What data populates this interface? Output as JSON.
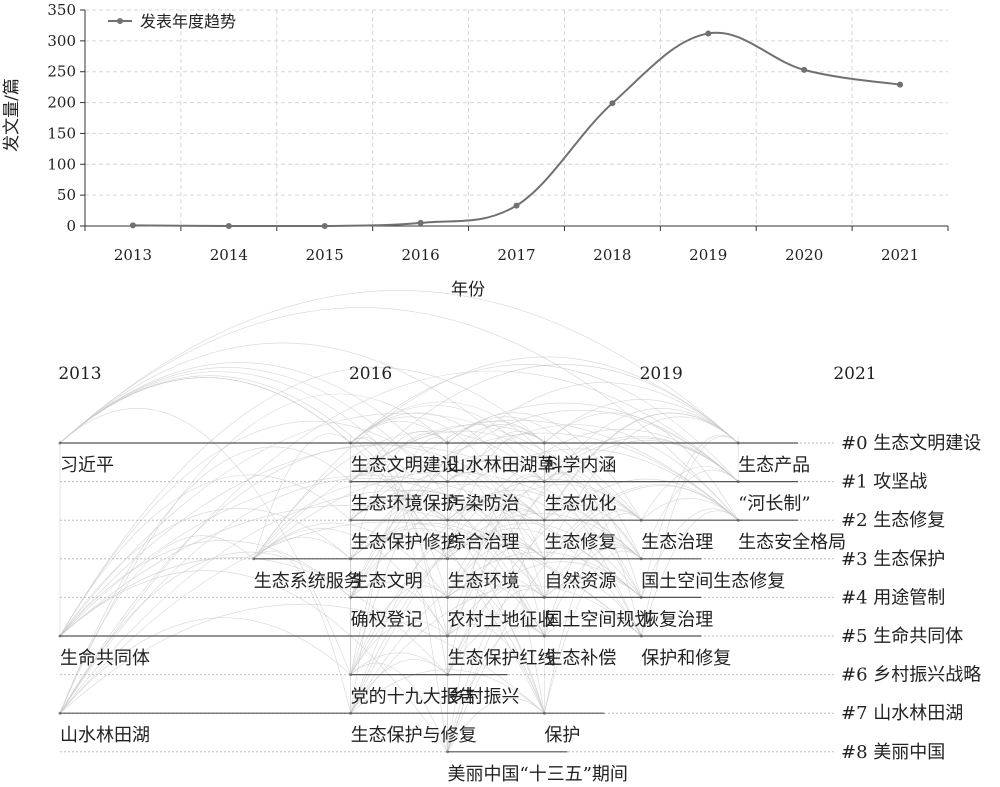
{
  "chart_data": [
    {
      "type": "line",
      "title": "",
      "xlabel": "年份",
      "ylabel": "发文量/篇",
      "categories": [
        "2013",
        "2014",
        "2015",
        "2016",
        "2017",
        "2018",
        "2019",
        "2020",
        "2021"
      ],
      "series": [
        {
          "name": "发表年度趋势",
          "values": [
            1,
            0,
            0,
            5,
            33,
            199,
            312,
            253,
            229
          ]
        }
      ],
      "ylim": [
        0,
        350
      ],
      "yticks": [
        0,
        50,
        100,
        150,
        200,
        250,
        300,
        350
      ],
      "grid": true,
      "legend": "top-left",
      "color": "#707070"
    },
    {
      "type": "timeline",
      "title": "",
      "year_labels": [
        {
          "year": "2013",
          "value": 2013
        },
        {
          "year": "2016",
          "value": 2016
        },
        {
          "year": "2019",
          "value": 2019
        },
        {
          "year": "2021",
          "value": 2021
        }
      ],
      "clusters": [
        {
          "label": "#0 生态文明建设",
          "start": 2013,
          "end": 2021
        },
        {
          "label": "#1 攻坚战",
          "start": 2013,
          "end": 2021
        },
        {
          "label": "#2 生态修复",
          "start": 2013,
          "end": 2021
        },
        {
          "label": "#3 生态保护",
          "start": 2013,
          "end": 2021
        },
        {
          "label": "#4 用途管制",
          "start": 2013,
          "end": 2021
        },
        {
          "label": "#5 生命共同体",
          "start": 2013,
          "end": 2021
        },
        {
          "label": "#6 乡村振兴战略",
          "start": 2013,
          "end": 2021
        },
        {
          "label": "#7 山水林田湖",
          "start": 2013,
          "end": 2021
        },
        {
          "label": "#8 美丽中国",
          "start": 2013,
          "end": 2021
        }
      ],
      "keywords": [
        {
          "text": "习近平",
          "year": 2013,
          "cluster": 0
        },
        {
          "text": "生态文明建设",
          "year": 2016,
          "cluster": 0
        },
        {
          "text": "山水林田湖草",
          "year": 2017,
          "cluster": 0
        },
        {
          "text": "科学内涵",
          "year": 2018,
          "cluster": 0
        },
        {
          "text": "生态产品",
          "year": 2020,
          "cluster": 0
        },
        {
          "text": "生态环境保护",
          "year": 2016,
          "cluster": 1
        },
        {
          "text": "污染防治",
          "year": 2017,
          "cluster": 1
        },
        {
          "text": "生态优化",
          "year": 2018,
          "cluster": 1
        },
        {
          "text": "“河长制”",
          "year": 2020,
          "cluster": 1
        },
        {
          "text": "生态保护修护",
          "year": 2016,
          "cluster": 2
        },
        {
          "text": "综合治理",
          "year": 2017,
          "cluster": 2
        },
        {
          "text": "生态修复",
          "year": 2018,
          "cluster": 2
        },
        {
          "text": "生态治理",
          "year": 2019,
          "cluster": 2
        },
        {
          "text": "生态安全格局",
          "year": 2020,
          "cluster": 2
        },
        {
          "text": "生态系统服务",
          "year": 2015,
          "cluster": 3
        },
        {
          "text": "生态文明",
          "year": 2016,
          "cluster": 3
        },
        {
          "text": "生态环境",
          "year": 2017,
          "cluster": 3
        },
        {
          "text": "自然资源",
          "year": 2018,
          "cluster": 3
        },
        {
          "text": "国土空间生态修复",
          "year": 2019,
          "cluster": 3
        },
        {
          "text": "生命共同体",
          "year": 2013,
          "cluster": 5
        },
        {
          "text": "确权登记",
          "year": 2016,
          "cluster": 4
        },
        {
          "text": "农村土地征收",
          "year": 2017,
          "cluster": 4
        },
        {
          "text": "国土空间规划",
          "year": 2018,
          "cluster": 4
        },
        {
          "text": "恢复治理",
          "year": 2019,
          "cluster": 4
        },
        {
          "text": "生态保护红线",
          "year": 2017,
          "cluster": 5
        },
        {
          "text": "生态补偿",
          "year": 2018,
          "cluster": 5
        },
        {
          "text": "保护和修复",
          "year": 2019,
          "cluster": 5
        },
        {
          "text": "山水林田湖",
          "year": 2013,
          "cluster": 7
        },
        {
          "text": "党的十九大报告",
          "year": 2016,
          "cluster": 6
        },
        {
          "text": "乡村振兴",
          "year": 2017,
          "cluster": 6
        },
        {
          "text": "生态保护与修复",
          "year": 2016,
          "cluster": 7
        },
        {
          "text": "保护",
          "year": 2018,
          "cluster": 7
        },
        {
          "text": "美丽中国“十三五”期间",
          "year": 2017,
          "cluster": 8
        }
      ]
    }
  ]
}
